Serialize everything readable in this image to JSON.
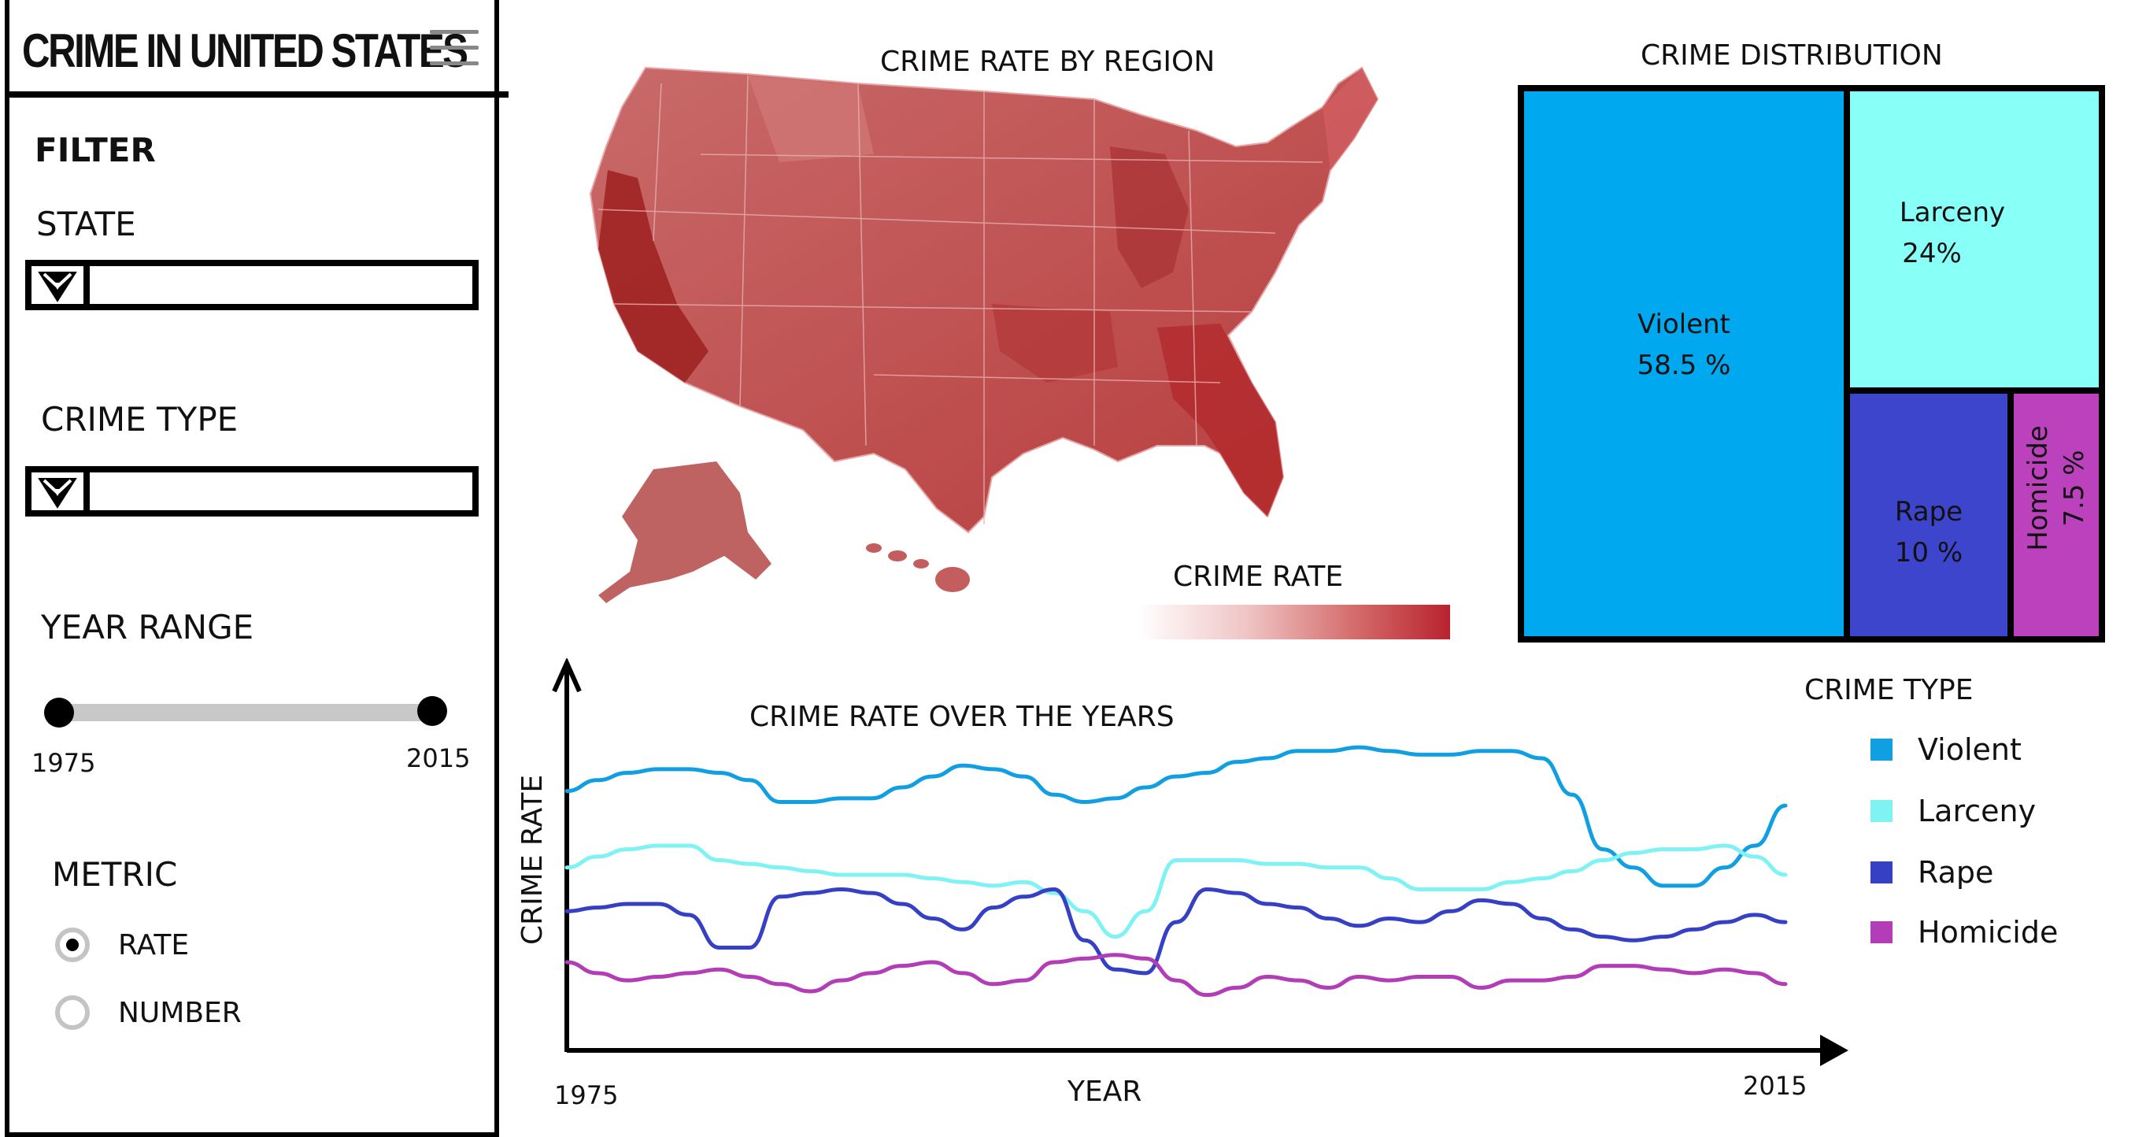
{
  "app": {
    "title": "CRIME IN UNITED STATES"
  },
  "sidebar": {
    "filter_heading": "FILTER",
    "state_label": "STATE",
    "state_value": "",
    "crime_type_label": "CRIME TYPE",
    "crime_type_value": "",
    "year_range_label": "YEAR RANGE",
    "year_min": "1975",
    "year_max": "2015",
    "metric_label": "METRIC",
    "metric_options": [
      "RATE",
      "NUMBER"
    ],
    "metric_selected": "RATE"
  },
  "map": {
    "title": "CRIME RATE BY REGION",
    "legend_title": "CRIME RATE",
    "color_low": "#ffffff",
    "color_high": "#b8232e"
  },
  "treemap": {
    "title": "CRIME DISTRIBUTION",
    "tiles": [
      {
        "name": "Violent",
        "value": "58.5 %",
        "color": "#00a9ef"
      },
      {
        "name": "Larceny",
        "value": "24%",
        "color": "#88fff7"
      },
      {
        "name": "Rape",
        "value": "10 %",
        "color": "#3d45cc"
      },
      {
        "name": "Homicide",
        "value": "7.5 %",
        "color": "#bb41bd"
      }
    ]
  },
  "line_chart": {
    "title": "CRIME RATE OVER THE YEARS",
    "x_label": "YEAR",
    "y_label": "CRIME RATE",
    "x_min": "1975",
    "x_max": "2015",
    "legend_title": "CRIME TYPE",
    "legend": [
      {
        "name": "Violent",
        "color": "#109fe0"
      },
      {
        "name": "Larceny",
        "color": "#7ff2f4"
      },
      {
        "name": "Rape",
        "color": "#3540c4"
      },
      {
        "name": "Homicide",
        "color": "#b23db6"
      }
    ]
  },
  "chart_data": {
    "type": "line",
    "title": "CRIME RATE OVER THE YEARS",
    "xlabel": "YEAR",
    "ylabel": "CRIME RATE",
    "xlim": [
      1975,
      2015
    ],
    "x": [
      1975,
      1976,
      1977,
      1978,
      1979,
      1980,
      1981,
      1982,
      1983,
      1984,
      1985,
      1986,
      1987,
      1988,
      1989,
      1990,
      1991,
      1992,
      1993,
      1994,
      1995,
      1996,
      1997,
      1998,
      1999,
      2000,
      2001,
      2002,
      2003,
      2004,
      2005,
      2006,
      2007,
      2008,
      2009,
      2010,
      2011,
      2012,
      2013,
      2014,
      2015
    ],
    "series": [
      {
        "name": "Violent",
        "values": [
          63,
          66,
          68,
          69,
          69,
          68,
          66,
          60,
          60,
          61,
          61,
          64,
          67,
          70,
          69,
          67,
          62,
          60,
          61,
          64,
          67,
          68,
          71,
          72,
          74,
          74,
          75,
          74,
          73,
          73,
          74,
          74,
          72,
          62,
          47,
          42,
          37,
          37,
          42,
          48,
          59
        ]
      },
      {
        "name": "Larceny",
        "values": [
          42,
          45,
          47,
          48,
          48,
          44,
          43,
          42,
          41,
          40,
          40,
          40,
          39,
          38,
          37,
          38,
          35,
          30,
          23,
          30,
          44,
          44,
          44,
          43,
          43,
          42,
          42,
          39,
          36,
          36,
          36,
          38,
          39,
          41,
          44,
          46,
          47,
          47,
          48,
          45,
          40
        ]
      },
      {
        "name": "Rape",
        "values": [
          30,
          31,
          32,
          32,
          29,
          20,
          20,
          34,
          35,
          36,
          35,
          32,
          28,
          25,
          31,
          34,
          36,
          22,
          14,
          13,
          27,
          36,
          35,
          32,
          31,
          28,
          26,
          28,
          27,
          30,
          33,
          32,
          28,
          25,
          23,
          22,
          23,
          25,
          27,
          29,
          27
        ]
      },
      {
        "name": "Homicide",
        "values": [
          16,
          13,
          11,
          12,
          13,
          14,
          12,
          10,
          8,
          11,
          13,
          15,
          16,
          13,
          10,
          11,
          16,
          17,
          18,
          17,
          11,
          7,
          9,
          12,
          11,
          9,
          12,
          11,
          12,
          12,
          9,
          11,
          11,
          12,
          15,
          15,
          14,
          13,
          14,
          13,
          10
        ]
      }
    ]
  }
}
